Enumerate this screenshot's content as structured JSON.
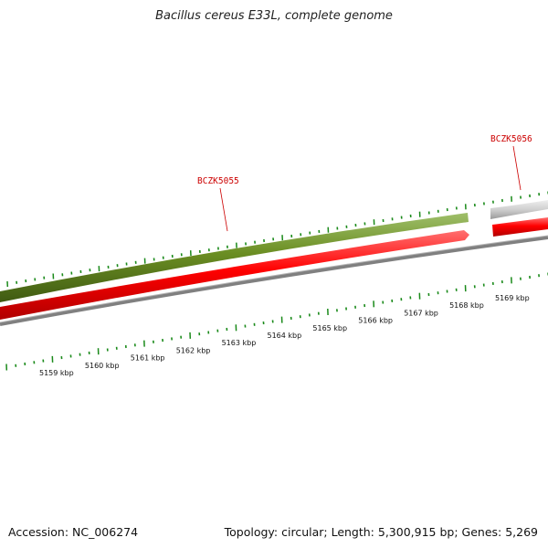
{
  "title": "Bacillus cereus E33L, complete genome",
  "footer": {
    "accession": "Accession: NC_006274",
    "summary": "Topology: circular; Length: 5,300,915 bp; Genes: 5,269"
  },
  "genes": [
    {
      "label": "BCZK5055"
    },
    {
      "label": "BCZK5056"
    }
  ],
  "ruler": {
    "labels": [
      "5159 kbp",
      "5160 kbp",
      "5161 kbp",
      "5162 kbp",
      "5163 kbp",
      "5164 kbp",
      "5165 kbp",
      "5166 kbp",
      "5167 kbp",
      "5168 kbp",
      "5169 kbp"
    ]
  },
  "colors": {
    "forward_gene": "#6b8e23",
    "reverse_gene": "#ff0000",
    "backbone": "#808080",
    "tick": "#1a8a1a",
    "label": "#cc0000",
    "faded_gene": "#c8c8c8"
  }
}
